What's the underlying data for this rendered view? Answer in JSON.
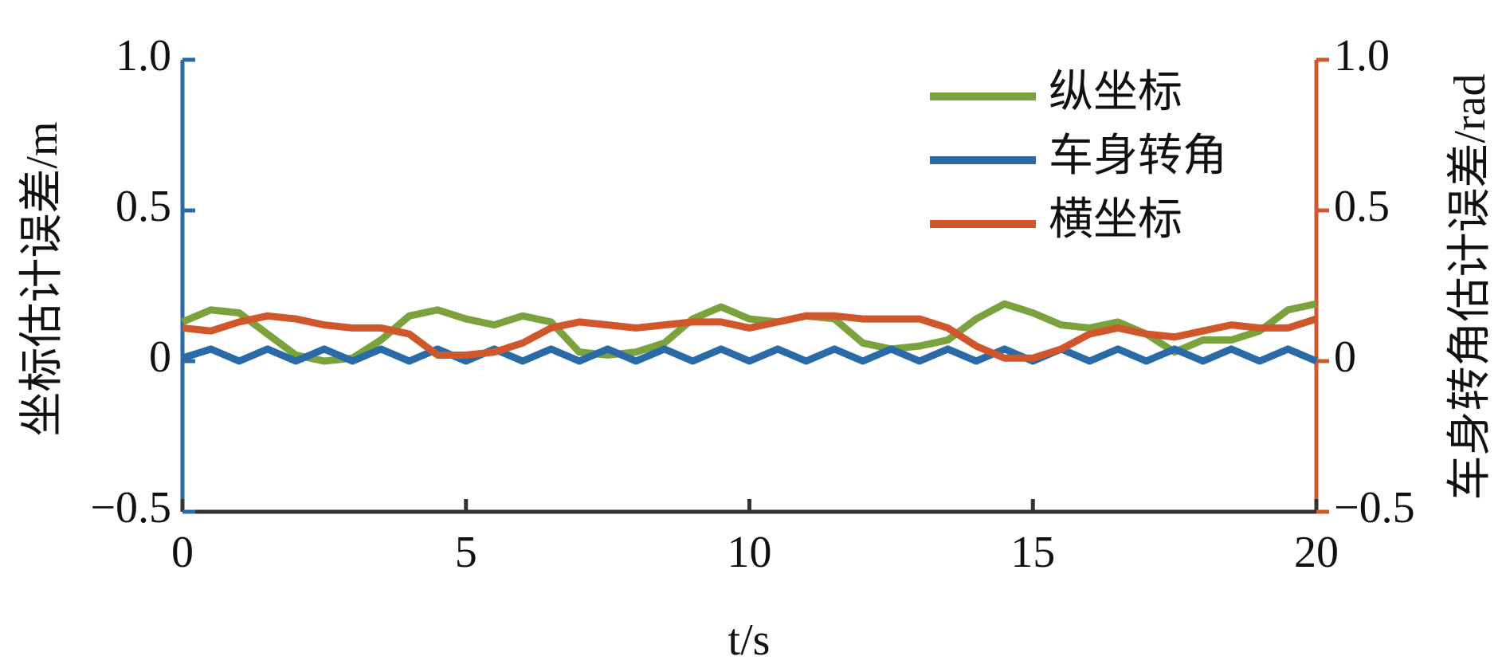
{
  "chart_data": {
    "type": "line",
    "x_label": "t/s",
    "y_label": "坐标估计误差/m",
    "y2_label": "车身转角估计误差/rad",
    "x": [
      0,
      0.5,
      1,
      1.5,
      2,
      2.5,
      3,
      3.5,
      4,
      4.5,
      5,
      5.5,
      6,
      6.5,
      7,
      7.5,
      8,
      8.5,
      9,
      9.5,
      10,
      10.5,
      11,
      11.5,
      12,
      12.5,
      13,
      13.5,
      14,
      14.5,
      15,
      15.5,
      16,
      16.5,
      17,
      17.5,
      18,
      18.5,
      19,
      19.5,
      20
    ],
    "xlim": [
      0,
      20
    ],
    "xticks": [
      0,
      5,
      10,
      15,
      20
    ],
    "ylim": [
      -0.5,
      1.0
    ],
    "yticks": [
      {
        "value": -0.5,
        "label": "−0.5"
      },
      0,
      0.5,
      {
        "value": 1.0,
        "label": "1.0"
      }
    ],
    "y2lim": [
      -0.5,
      1.0
    ],
    "y2ticks": [
      {
        "value": -0.5,
        "label": "−0.5"
      },
      0,
      0.5,
      {
        "value": 1.0,
        "label": "1.0"
      }
    ],
    "y_axis_color": "#2a6aa6",
    "y2_axis_color": "#d0572c",
    "legend": "upper right",
    "series": [
      {
        "name": "纵坐标",
        "color": "#7ba23c",
        "values": [
          0.13,
          0.17,
          0.16,
          0.09,
          0.02,
          0.0,
          0.01,
          0.07,
          0.15,
          0.17,
          0.14,
          0.12,
          0.15,
          0.13,
          0.03,
          0.02,
          0.03,
          0.06,
          0.14,
          0.18,
          0.14,
          0.13,
          0.15,
          0.14,
          0.06,
          0.04,
          0.05,
          0.07,
          0.14,
          0.19,
          0.16,
          0.12,
          0.11,
          0.13,
          0.09,
          0.03,
          0.07,
          0.07,
          0.1,
          0.17,
          0.19
        ]
      },
      {
        "name": "车身转角",
        "color": "#2a6aa6",
        "axis": "y2",
        "values": [
          0.01,
          0.04,
          0.0,
          0.04,
          0.0,
          0.04,
          0.0,
          0.04,
          0.0,
          0.04,
          0.0,
          0.04,
          0.0,
          0.04,
          0.0,
          0.04,
          0.0,
          0.04,
          0.0,
          0.04,
          0.0,
          0.04,
          0.0,
          0.04,
          0.0,
          0.04,
          0.0,
          0.04,
          0.0,
          0.04,
          0.0,
          0.04,
          0.0,
          0.04,
          0.0,
          0.04,
          0.0,
          0.04,
          0.0,
          0.04,
          0.0
        ]
      },
      {
        "name": "横坐标",
        "color": "#d0572c",
        "values": [
          0.11,
          0.1,
          0.13,
          0.15,
          0.14,
          0.12,
          0.11,
          0.11,
          0.09,
          0.02,
          0.02,
          0.03,
          0.06,
          0.11,
          0.13,
          0.12,
          0.11,
          0.12,
          0.13,
          0.13,
          0.11,
          0.13,
          0.15,
          0.15,
          0.14,
          0.14,
          0.14,
          0.11,
          0.05,
          0.01,
          0.01,
          0.04,
          0.09,
          0.11,
          0.09,
          0.08,
          0.1,
          0.12,
          0.11,
          0.11,
          0.14
        ]
      }
    ]
  }
}
